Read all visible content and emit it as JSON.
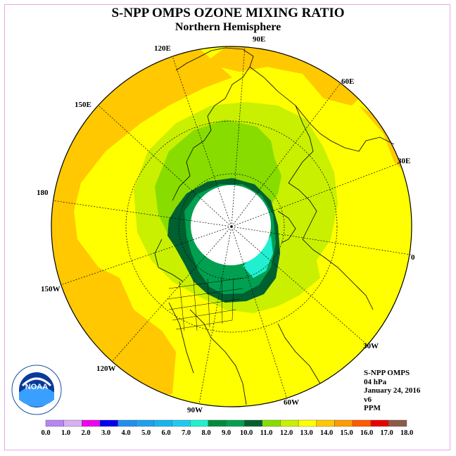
{
  "title": "S-NPP OMPS OZONE MIXING RATIO",
  "subtitle": "Northern Hemisphere",
  "longitude_labels": {
    "l90e": "90E",
    "l60e": "60E",
    "l30e": "30E",
    "l0": "0",
    "l30w": "30W",
    "l60w": "60W",
    "l90w": "90W",
    "l120w": "120W",
    "l150w": "150W",
    "l180": "180",
    "l150e": "150E",
    "l120e": "120E"
  },
  "info": {
    "instrument": "S-NPP OMPS",
    "level": "04 hPa",
    "date": "January 24, 2016",
    "version": "v6",
    "units": "PPM"
  },
  "logo_text": "NOAA",
  "colorbar": {
    "ticks": [
      "0.0",
      "1.0",
      "2.0",
      "3.0",
      "4.0",
      "5.0",
      "6.0",
      "7.0",
      "8.0",
      "9.0",
      "10.0",
      "11.0",
      "12.0",
      "13.0",
      "14.0",
      "15.0",
      "16.0",
      "17.0",
      "18.0"
    ],
    "colors": [
      "#b784f2",
      "#d8b0f2",
      "#ee00ee",
      "#0000ee",
      "#1e8ff0",
      "#1ea0f0",
      "#18b4f0",
      "#1ecaf0",
      "#20f0d0",
      "#008c3c",
      "#00a050",
      "#006030",
      "#88dc00",
      "#c8f000",
      "#ffff00",
      "#ffc800",
      "#ff9a00",
      "#ff5a00",
      "#e80000",
      "#8c5a46"
    ]
  }
}
